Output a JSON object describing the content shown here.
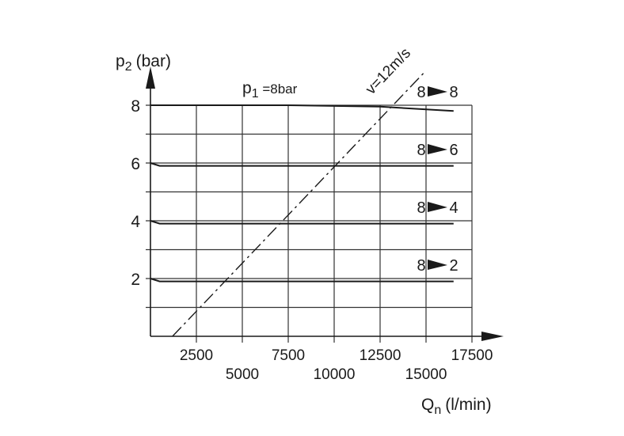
{
  "chart_data": {
    "type": "line",
    "xlabel": {
      "main": "Q",
      "sub": "n",
      "unit": "(l/min)"
    },
    "ylabel": {
      "main": "p",
      "sub": "2",
      "unit": "(bar)"
    },
    "xlim": [
      0,
      17500
    ],
    "ylim": [
      0,
      8
    ],
    "x_ticks_upper": [
      2500,
      7500,
      12500,
      17500
    ],
    "x_ticks_lower": [
      5000,
      10000,
      15000
    ],
    "y_ticks": [
      2,
      4,
      6,
      8
    ],
    "grid": true,
    "annotation_p1": {
      "main": "p",
      "sub": "1",
      "rest": " =8bar"
    },
    "velocity_line": {
      "label": "v=12m/s",
      "points": [
        [
          1200,
          0
        ],
        [
          15000,
          9.2
        ]
      ]
    },
    "series": [
      {
        "name": "8 ► 8",
        "from": "8",
        "to": "8",
        "points": [
          [
            0,
            8.0
          ],
          [
            7500,
            8.0
          ],
          [
            12500,
            7.95
          ],
          [
            16500,
            7.8
          ]
        ]
      },
      {
        "name": "8 ► 6",
        "from": "8",
        "to": "6",
        "points": [
          [
            0,
            6.0
          ],
          [
            500,
            5.9
          ],
          [
            16500,
            5.9
          ]
        ]
      },
      {
        "name": "8 ► 4",
        "from": "8",
        "to": "4",
        "points": [
          [
            0,
            4.0
          ],
          [
            500,
            3.9
          ],
          [
            16500,
            3.9
          ]
        ]
      },
      {
        "name": "8 ► 2",
        "from": "8",
        "to": "2",
        "points": [
          [
            0,
            2.0
          ],
          [
            500,
            1.9
          ],
          [
            16500,
            1.9
          ]
        ]
      }
    ]
  }
}
